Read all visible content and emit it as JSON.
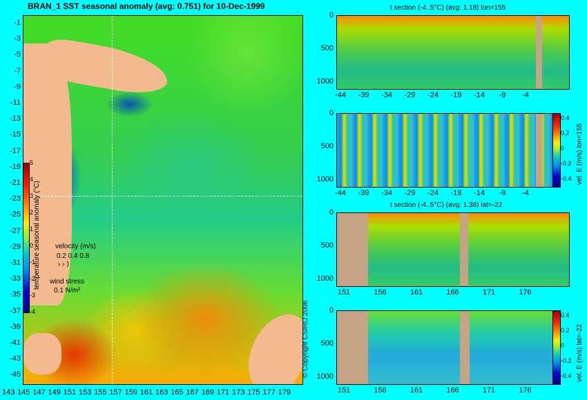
{
  "map": {
    "title": "BRAN_1 SST seasonal anomaly (avg: 0.751) for 10-Dec-1999",
    "lat_ticks": [
      "-1",
      "-3",
      "-5",
      "-7",
      "-9",
      "-11",
      "-13",
      "-15",
      "-17",
      "-19",
      "-21",
      "-23",
      "-25",
      "-27",
      "-29",
      "-31",
      "-33",
      "-35",
      "-37",
      "-39",
      "-41",
      "-43",
      "-45"
    ],
    "lon_ticks": [
      "143",
      "145",
      "147",
      "149",
      "151",
      "153",
      "155",
      "157",
      "159",
      "161",
      "163",
      "165",
      "167",
      "169",
      "171",
      "173",
      "175",
      "177",
      "179"
    ],
    "colorbar_ticks": [
      "5",
      "4",
      "3",
      "2",
      "1",
      "0",
      "-1",
      "-2",
      "-3",
      "-4"
    ],
    "colorbar_label": "temperature seasonal anomaly (°C)",
    "velocity_label": "velocity (m/s)",
    "velocity_scale": "0.2 0.4 0.8",
    "wind_label": "wind stress",
    "wind_scale": "0.1 N/m²",
    "copyright": "© Copyright CSIRO 2006"
  },
  "panels": [
    {
      "title": "t section (-4..5°C) (avg: 1.18) lon=155",
      "x_ticks": [
        "-44",
        "-39",
        "-34",
        "-29",
        "-24",
        "-19",
        "-14",
        "-9",
        "-4"
      ],
      "y_ticks": [
        "0",
        "500",
        "1000"
      ]
    },
    {
      "title": "",
      "x_ticks": [
        "-44",
        "-39",
        "-34",
        "-29",
        "-24",
        "-19",
        "-14",
        "-9",
        "-4"
      ],
      "y_ticks": [
        "0",
        "500",
        "1000"
      ],
      "colorbar_ticks": [
        "0.4",
        "0.2",
        "0",
        "-0.2",
        "-0.4"
      ],
      "colorbar_label": "vel. E (m/s) lon=155"
    },
    {
      "title": "t section (-4..5°C) (avg: 1.38) lat=-22",
      "x_ticks": [
        "151",
        "156",
        "161",
        "166",
        "171",
        "176"
      ],
      "y_ticks": [
        "0",
        "500",
        "1000"
      ]
    },
    {
      "title": "",
      "x_ticks": [
        "151",
        "156",
        "161",
        "166",
        "171",
        "176"
      ],
      "y_ticks": [
        "0",
        "500",
        "1000"
      ],
      "colorbar_ticks": [
        "0.4",
        "0.2",
        "0",
        "-0.2",
        "-0.4"
      ],
      "colorbar_label": "vel. E (m/s) lat=-22"
    }
  ]
}
